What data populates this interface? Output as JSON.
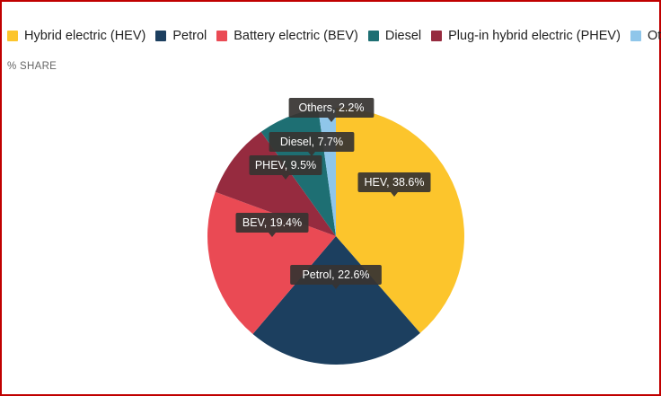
{
  "chart_data": {
    "type": "pie",
    "subtitle": "% SHARE",
    "legend_position": "top",
    "slices": [
      {
        "name": "Hybrid electric (HEV)",
        "short": "HEV",
        "value": 38.6,
        "color": "#fcc52c"
      },
      {
        "name": "Petrol",
        "short": "Petrol",
        "value": 22.6,
        "color": "#1c3f5f"
      },
      {
        "name": "Battery electric (BEV)",
        "short": "BEV",
        "value": 19.4,
        "color": "#ea4a54"
      },
      {
        "name": "Diesel",
        "short": "Diesel",
        "value": 7.7,
        "color": "#1e6f73"
      },
      {
        "name": "Plug-in hybrid electric (PHEV)",
        "short": "PHEV",
        "value": 9.5,
        "color": "#962b3f"
      },
      {
        "name": "Others",
        "short": "Others",
        "value": 2.2,
        "color": "#8fc6ea"
      }
    ],
    "slice_order": [
      "HEV",
      "Petrol",
      "BEV",
      "PHEV",
      "Diesel",
      "Others"
    ],
    "data_labels": [
      "HEV, 38.6%",
      "Petrol, 22.6%",
      "BEV, 19.4%",
      "PHEV, 9.5%",
      "Diesel, 7.7%",
      "Others, 2.2%"
    ]
  }
}
